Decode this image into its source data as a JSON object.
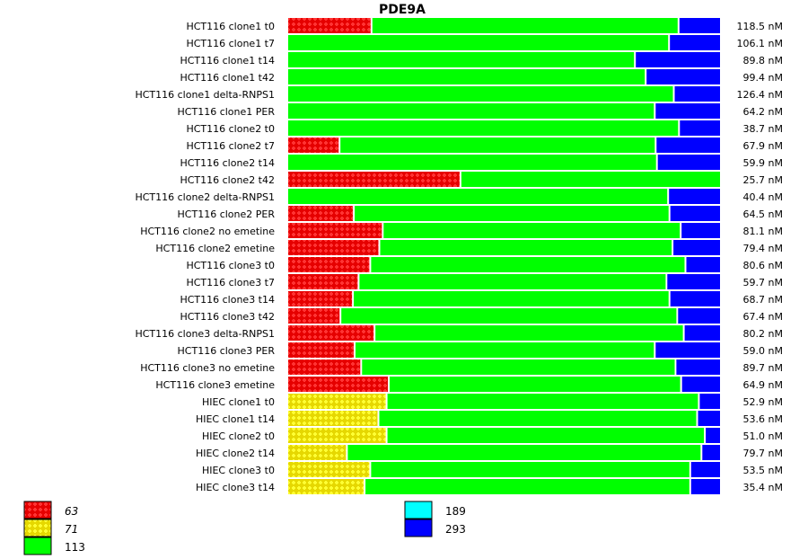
{
  "chart_data": {
    "type": "bar",
    "orientation": "horizontal-stacked-100",
    "title": "PDE9A",
    "xlabel": "",
    "ylabel": "",
    "value_unit": "fraction of bar",
    "segment_order": [
      "63",
      "71",
      "113",
      "293"
    ],
    "colors": {
      "63": "#ff0000",
      "71": "#ffff00",
      "113": "#00ff00",
      "189": "#00ffff",
      "293": "#0000ff"
    },
    "patterned": [
      "63",
      "71"
    ],
    "legend": [
      {
        "key": "63",
        "label": "63",
        "italic": true,
        "color": "#ff0000",
        "pattern": true
      },
      {
        "key": "71",
        "label": "71",
        "italic": true,
        "color": "#ffff00",
        "pattern": true
      },
      {
        "key": "113",
        "label": "113",
        "italic": false,
        "color": "#00ff00",
        "pattern": false
      },
      {
        "key": "189",
        "label": "189",
        "italic": false,
        "color": "#00ffff",
        "pattern": false
      },
      {
        "key": "293",
        "label": "293",
        "italic": false,
        "color": "#0000ff",
        "pattern": false
      }
    ],
    "rows": [
      {
        "label": "HCT116 clone1 t0",
        "total": "118.5 nM",
        "segments": {
          "63": 0.195,
          "71": 0,
          "113": 0.711,
          "293": 0.094
        }
      },
      {
        "label": "HCT116 clone1 t7",
        "total": "106.1 nM",
        "segments": {
          "63": 0,
          "71": 0,
          "113": 0.884,
          "293": 0.116
        }
      },
      {
        "label": "HCT116 clone1 t14",
        "total": "89.8 nM",
        "segments": {
          "63": 0,
          "71": 0,
          "113": 0.805,
          "293": 0.195
        }
      },
      {
        "label": "HCT116 clone1 t42",
        "total": "99.4 nM",
        "segments": {
          "63": 0,
          "71": 0,
          "113": 0.83,
          "293": 0.17
        }
      },
      {
        "label": "HCT116 clone1 delta-RNPS1",
        "total": "126.4 nM",
        "segments": {
          "63": 0,
          "71": 0,
          "113": 0.895,
          "293": 0.105
        }
      },
      {
        "label": "HCT116 clone1 PER",
        "total": "64.2 nM",
        "segments": {
          "63": 0,
          "71": 0,
          "113": 0.851,
          "293": 0.149
        }
      },
      {
        "label": "HCT116 clone2 t0",
        "total": "38.7 nM",
        "segments": {
          "63": 0,
          "71": 0,
          "113": 0.907,
          "293": 0.093
        }
      },
      {
        "label": "HCT116 clone2 t7",
        "total": "67.9 nM",
        "segments": {
          "63": 0.121,
          "71": 0,
          "113": 0.732,
          "293": 0.147
        }
      },
      {
        "label": "HCT116 clone2 t14",
        "total": "59.9 nM",
        "segments": {
          "63": 0,
          "71": 0,
          "113": 0.856,
          "293": 0.144
        }
      },
      {
        "label": "HCT116 clone2 t42",
        "total": "25.7 nM",
        "segments": {
          "63": 0.401,
          "71": 0,
          "113": 0.599,
          "293": 0
        }
      },
      {
        "label": "HCT116 clone2 delta-RNPS1",
        "total": "40.4 nM",
        "segments": {
          "63": 0,
          "71": 0,
          "113": 0.882,
          "293": 0.118
        }
      },
      {
        "label": "HCT116 clone2 PER",
        "total": "64.5 nM",
        "segments": {
          "63": 0.154,
          "71": 0,
          "113": 0.731,
          "293": 0.115
        }
      },
      {
        "label": "HCT116 clone2 no emetine",
        "total": "81.1 nM",
        "segments": {
          "63": 0.221,
          "71": 0,
          "113": 0.69,
          "293": 0.089
        }
      },
      {
        "label": "HCT116 clone2 emetine",
        "total": "79.4 nM",
        "segments": {
          "63": 0.213,
          "71": 0,
          "113": 0.679,
          "293": 0.108
        }
      },
      {
        "label": "HCT116 clone3 t0",
        "total": "80.6 nM",
        "segments": {
          "63": 0.192,
          "71": 0,
          "113": 0.73,
          "293": 0.078
        }
      },
      {
        "label": "HCT116 clone3 t7",
        "total": "59.7 nM",
        "segments": {
          "63": 0.165,
          "71": 0,
          "113": 0.713,
          "293": 0.122
        }
      },
      {
        "label": "HCT116 clone3 t14",
        "total": "68.7 nM",
        "segments": {
          "63": 0.152,
          "71": 0,
          "113": 0.733,
          "293": 0.115
        }
      },
      {
        "label": "HCT116 clone3 t42",
        "total": "67.4 nM",
        "segments": {
          "63": 0.123,
          "71": 0,
          "113": 0.78,
          "293": 0.097
        }
      },
      {
        "label": "HCT116 clone3 delta-RNPS1",
        "total": "80.2 nM",
        "segments": {
          "63": 0.202,
          "71": 0,
          "113": 0.716,
          "293": 0.082
        }
      },
      {
        "label": "HCT116 clone3 PER",
        "total": "59.0 nM",
        "segments": {
          "63": 0.156,
          "71": 0,
          "113": 0.695,
          "293": 0.149
        }
      },
      {
        "label": "HCT116 clone3 no emetine",
        "total": "89.7 nM",
        "segments": {
          "63": 0.171,
          "71": 0,
          "113": 0.728,
          "293": 0.101
        }
      },
      {
        "label": "HCT116 clone3 emetine",
        "total": "64.9 nM",
        "segments": {
          "63": 0.235,
          "71": 0,
          "113": 0.677,
          "293": 0.088
        }
      },
      {
        "label": "HIEC clone1 t0",
        "total": "52.9 nM",
        "segments": {
          "63": 0,
          "71": 0.23,
          "113": 0.723,
          "293": 0.047
        }
      },
      {
        "label": "HIEC clone1 t14",
        "total": "53.6 nM",
        "segments": {
          "63": 0,
          "71": 0.211,
          "113": 0.738,
          "293": 0.051
        }
      },
      {
        "label": "HIEC clone2 t0",
        "total": "51.0 nM",
        "segments": {
          "63": 0,
          "71": 0.23,
          "113": 0.737,
          "293": 0.033
        }
      },
      {
        "label": "HIEC clone2 t14",
        "total": "79.7 nM",
        "segments": {
          "63": 0,
          "71": 0.138,
          "113": 0.821,
          "293": 0.041
        }
      },
      {
        "label": "HIEC clone3 t0",
        "total": "53.5 nM",
        "segments": {
          "63": 0,
          "71": 0.192,
          "113": 0.741,
          "293": 0.067
        }
      },
      {
        "label": "HIEC clone3 t14",
        "total": "35.4 nM",
        "segments": {
          "63": 0,
          "71": 0.179,
          "113": 0.754,
          "293": 0.067
        }
      }
    ]
  }
}
